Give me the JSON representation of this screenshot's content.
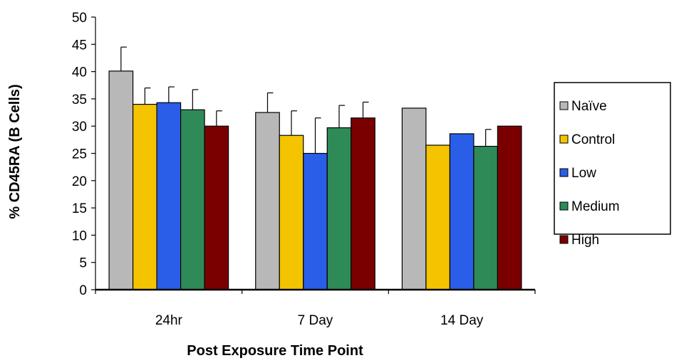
{
  "chart_data": {
    "type": "bar",
    "title": "",
    "xlabel": "Post Exposure Time Point",
    "ylabel": "% CD45RA (B Cells)",
    "ylim": [
      0,
      50
    ],
    "yticks": [
      0,
      5,
      10,
      15,
      20,
      25,
      30,
      35,
      40,
      45,
      50
    ],
    "grid": false,
    "legend_position": "right",
    "categories": [
      "24hr",
      "7 Day",
      "14 Day"
    ],
    "series": [
      {
        "name": "Naïve",
        "color": "#b8b8b8",
        "values": [
          40.1,
          32.5,
          33.3
        ],
        "errors": [
          4.4,
          3.6,
          null
        ]
      },
      {
        "name": "Control",
        "color": "#f5c400",
        "values": [
          34.0,
          28.3,
          26.5
        ],
        "errors": [
          3.0,
          4.5,
          null
        ]
      },
      {
        "name": "Low",
        "color": "#2a5ee8",
        "values": [
          34.3,
          25.0,
          28.6
        ],
        "errors": [
          2.9,
          6.5,
          null
        ]
      },
      {
        "name": "Medium",
        "color": "#2e8b57",
        "values": [
          33.0,
          29.7,
          26.3
        ],
        "errors": [
          3.7,
          4.1,
          3.1
        ]
      },
      {
        "name": "High",
        "color": "#7a0000",
        "values": [
          30.0,
          31.5,
          30.0
        ],
        "errors": [
          2.8,
          2.9,
          null
        ]
      }
    ]
  }
}
